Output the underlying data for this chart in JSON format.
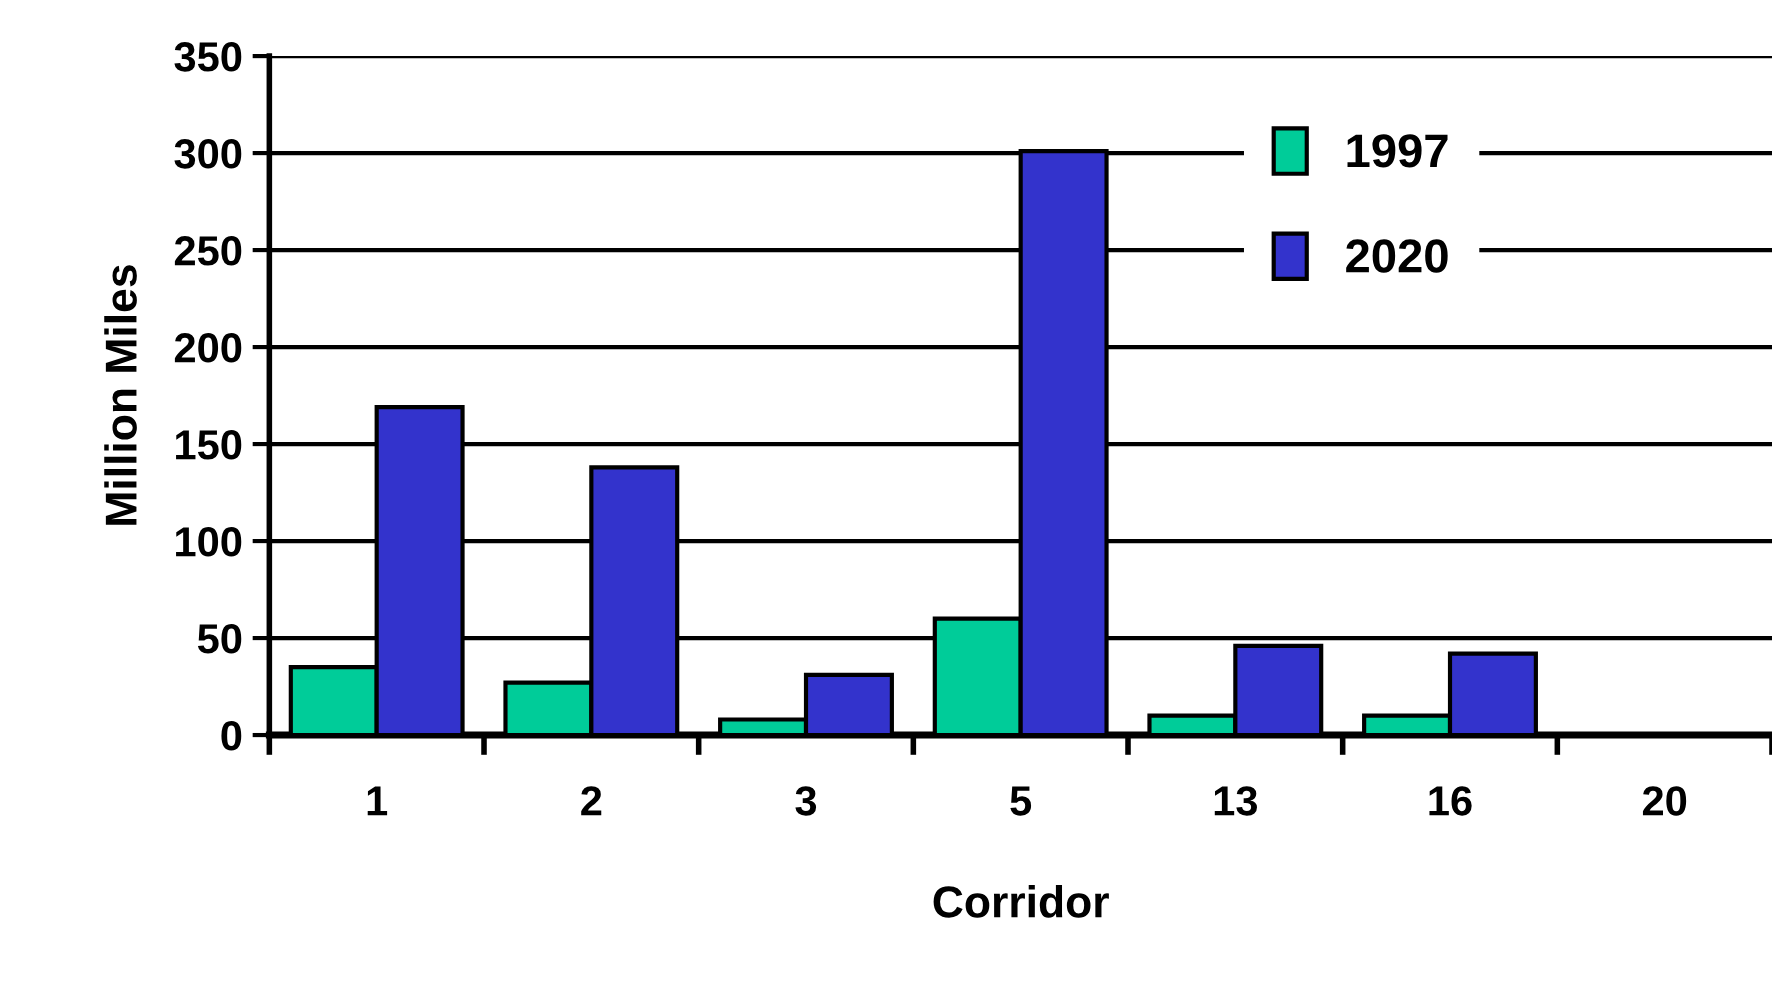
{
  "chart_data": {
    "type": "bar",
    "xlabel": "Corridor",
    "ylabel": "Million Miles",
    "categories": [
      "1",
      "2",
      "3",
      "5",
      "13",
      "16",
      "20"
    ],
    "series": [
      {
        "name": "1997",
        "color": "#00cc99",
        "values": [
          35,
          27,
          8,
          60,
          10,
          10,
          null
        ]
      },
      {
        "name": "2020",
        "color": "#3333cc",
        "values": [
          169,
          138,
          31,
          301,
          46,
          42,
          null
        ]
      }
    ],
    "ylim": [
      0,
      350
    ],
    "yticks": [
      0,
      50,
      100,
      150,
      200,
      250,
      300,
      350
    ],
    "grid": "y",
    "legend": "top right"
  }
}
